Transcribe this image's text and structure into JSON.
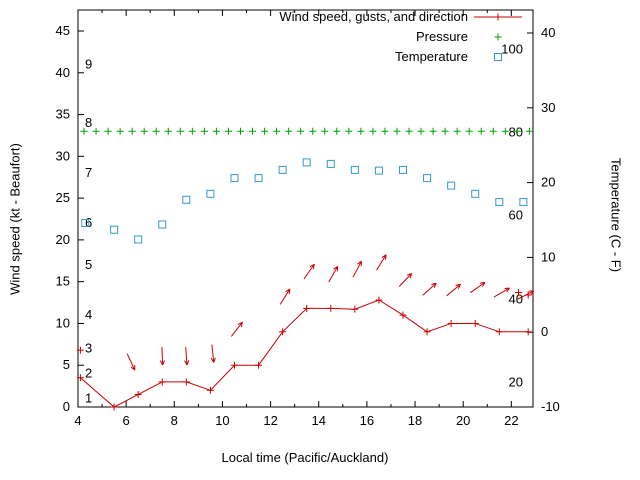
{
  "chart_data": {
    "type": "line",
    "title": "",
    "xlabel": "Local time (Pacific/Auckland)",
    "ylabel_left": "Wind speed (kt - Beaufort)",
    "ylabel_right": "Temperature (C - F)",
    "x_range": [
      4,
      22.9
    ],
    "y_left_range": [
      0,
      45
    ],
    "y_right_range": [
      -10,
      40
    ],
    "x_ticks": [
      4,
      6,
      8,
      10,
      12,
      14,
      16,
      18,
      20,
      22
    ],
    "x_minor_ticks": [
      5,
      7,
      9,
      11,
      13,
      15,
      17,
      19,
      21
    ],
    "y_left_ticks": [
      0,
      5,
      10,
      15,
      20,
      25,
      30,
      35,
      40,
      45
    ],
    "y_right_ticks": [
      -10,
      0,
      10,
      20,
      30,
      40
    ],
    "grid": false,
    "legend_position": "top-right-inside",
    "beaufort_scale": {
      "labels": [
        "1",
        "2",
        "3",
        "4",
        "5",
        "6",
        "7",
        "8",
        "9"
      ],
      "kt": [
        1,
        4,
        7,
        11,
        17,
        22,
        28,
        34,
        41
      ]
    },
    "fahrenheit_scale": {
      "labels": [
        "20",
        "40",
        "60",
        "80",
        "100"
      ],
      "celsius": [
        -6.7,
        4.4,
        15.6,
        26.7,
        37.8
      ]
    },
    "colors": {
      "wind": "#cc0000",
      "pressure": "#00a000",
      "temperature": "#3399cc",
      "axis": "#000000",
      "background": "#ffffff"
    },
    "legend": [
      {
        "label": "Wind speed, gusts, and direction",
        "marker": "line-plus",
        "series": "wind"
      },
      {
        "label": "Pressure",
        "marker": "plus",
        "series": "pressure"
      },
      {
        "label": "Temperature",
        "marker": "open-square",
        "series": "temperature"
      }
    ],
    "series": {
      "wind_speed": {
        "axis": "left",
        "unit": "kt",
        "x": [
          4.1,
          5.5,
          6.5,
          7.5,
          8.5,
          9.5,
          10.5,
          11.5,
          12.5,
          13.5,
          14.5,
          15.5,
          16.5,
          17.5,
          18.5,
          19.5,
          20.5,
          21.5,
          22.7
        ],
        "values": [
          3.5,
          0.0,
          1.5,
          3.0,
          3.0,
          2.0,
          5.0,
          5.0,
          9.0,
          11.8,
          11.8,
          11.7,
          12.8,
          11.0,
          9.0,
          10.0,
          10.0,
          9.0,
          9.0
        ]
      },
      "wind_gusts": {
        "axis": "left",
        "unit": "kt",
        "points": [
          {
            "x": 4.1,
            "v": 6.8
          },
          {
            "x": 22.3,
            "v": 13.7
          },
          {
            "x": 22.7,
            "v": 13.4
          }
        ]
      },
      "wind_direction_arrows": [
        {
          "x": 6.2,
          "v": 5.4,
          "angle": -65
        },
        {
          "x": 7.5,
          "v": 6.1,
          "angle": -88
        },
        {
          "x": 8.5,
          "v": 6.1,
          "angle": -86
        },
        {
          "x": 9.6,
          "v": 6.4,
          "angle": -84
        },
        {
          "x": 10.6,
          "v": 9.3,
          "angle": 52
        },
        {
          "x": 12.6,
          "v": 13.2,
          "angle": 58
        },
        {
          "x": 13.6,
          "v": 16.2,
          "angle": 55
        },
        {
          "x": 14.6,
          "v": 15.9,
          "angle": 60
        },
        {
          "x": 15.6,
          "v": 16.5,
          "angle": 62
        },
        {
          "x": 16.6,
          "v": 17.3,
          "angle": 58
        },
        {
          "x": 17.6,
          "v": 15.2,
          "angle": 46
        },
        {
          "x": 18.6,
          "v": 14.1,
          "angle": 42
        },
        {
          "x": 19.6,
          "v": 14.0,
          "angle": 40
        },
        {
          "x": 20.6,
          "v": 14.3,
          "angle": 35
        },
        {
          "x": 21.6,
          "v": 13.7,
          "angle": 30
        },
        {
          "x": 22.6,
          "v": 13.4,
          "angle": 27
        }
      ],
      "pressure": {
        "axis": "left",
        "display_value": 33.0,
        "x_start": 4.25,
        "x_end": 22.75,
        "step": 0.5
      },
      "temperature": {
        "axis": "right",
        "unit": "C",
        "x": [
          4.3,
          5.5,
          6.5,
          7.5,
          8.5,
          9.5,
          10.5,
          11.5,
          12.5,
          13.5,
          14.5,
          15.5,
          16.5,
          17.5,
          18.5,
          19.5,
          20.5,
          21.5,
          22.5
        ],
        "values": [
          14.6,
          13.7,
          12.4,
          14.4,
          17.7,
          18.5,
          20.6,
          20.6,
          21.7,
          22.7,
          22.5,
          21.7,
          21.6,
          21.7,
          20.6,
          19.6,
          18.5,
          17.4,
          17.4
        ]
      }
    }
  }
}
